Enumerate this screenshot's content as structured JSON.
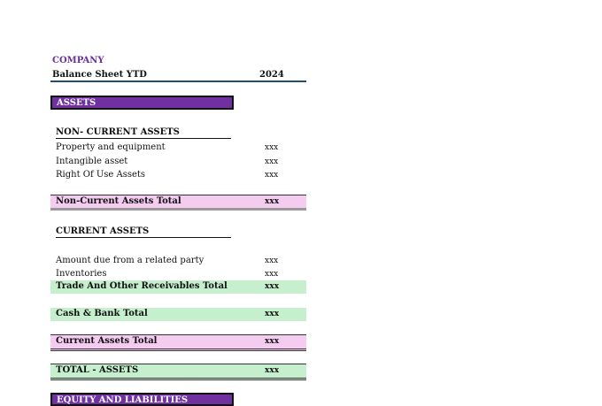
{
  "company": "COMPANY",
  "sheet": {
    "title": "Balance Sheet YTD",
    "year": "2024"
  },
  "assets": {
    "banner": "ASSETS",
    "non_current": {
      "heading": "NON- CURRENT ASSETS",
      "items": [
        {
          "label": "Property and equipment",
          "value": "xxx"
        },
        {
          "label": "Intangible asset",
          "value": "xxx"
        },
        {
          "label": "Right Of Use Assets",
          "value": "xxx"
        }
      ],
      "total": {
        "label": "Non-Current Assets Total",
        "value": "xxx"
      }
    },
    "current": {
      "heading": "CURRENT ASSETS",
      "items": [
        {
          "label": "Amount due from a related party",
          "value": "xxx"
        },
        {
          "label": "Inventories",
          "value": "xxx"
        }
      ],
      "receivables_total": {
        "label": "Trade And Other Receivables Total",
        "value": "xxx"
      },
      "cash_total": {
        "label": "Cash & Bank Total",
        "value": "xxx"
      },
      "total": {
        "label": "Current Assets Total",
        "value": "xxx"
      }
    },
    "total": {
      "label": "TOTAL - ASSETS",
      "value": "xxx"
    }
  },
  "equity_liabilities": {
    "banner": "EQUITY AND LIABILITIES"
  }
}
